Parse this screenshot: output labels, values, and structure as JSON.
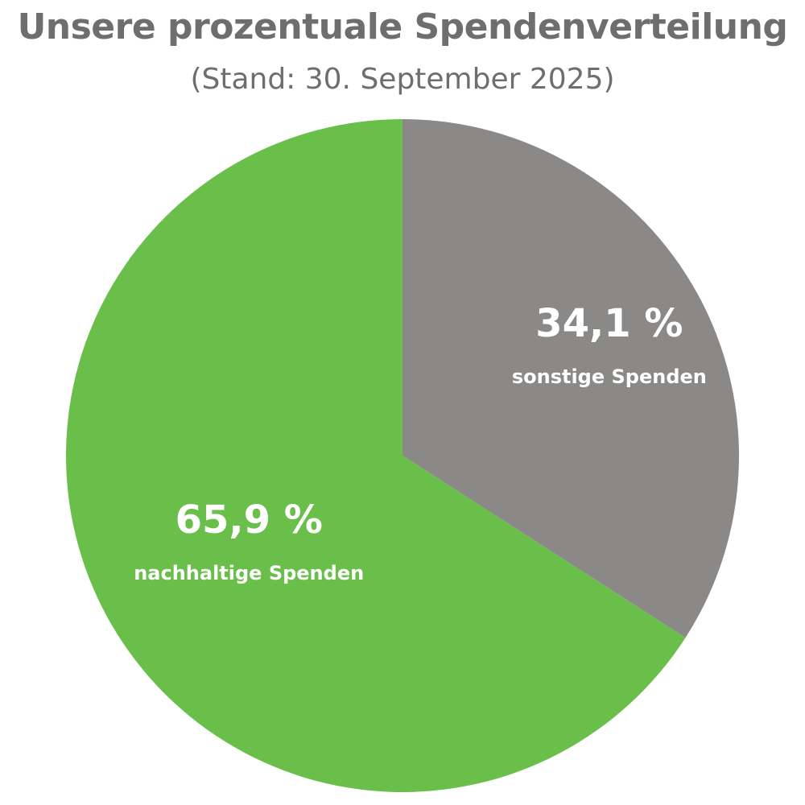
{
  "chart_data": {
    "type": "pie",
    "title": "Unsere prozentuale Spendenverteilung",
    "subtitle": "(Stand: 30. September 2025)",
    "slices": [
      {
        "label": "sonstige Spenden",
        "value": 34.1,
        "value_label": "34,1 %",
        "color": "#8a8987"
      },
      {
        "label": "nachhaltige Spenden",
        "value": 65.9,
        "value_label": "65,9 %",
        "color": "#6abf4b"
      }
    ],
    "start_angle": "top, clockwise",
    "legend": "none"
  }
}
